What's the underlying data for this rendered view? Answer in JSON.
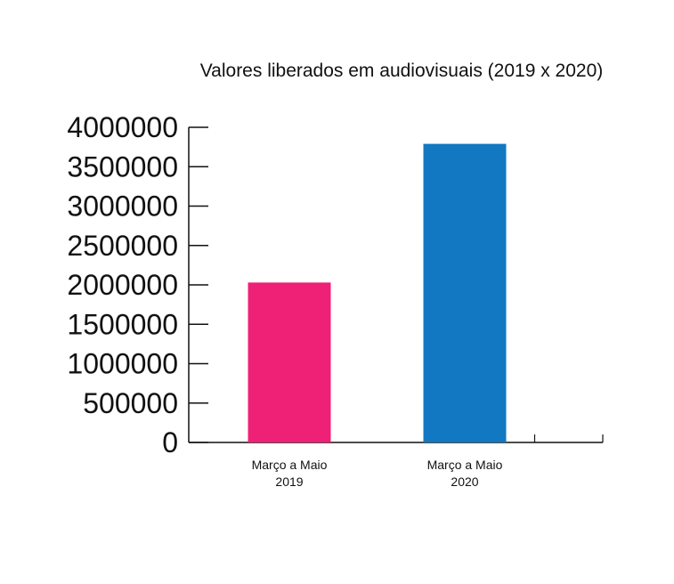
{
  "chart_data": {
    "type": "bar",
    "title": "Valores liberados em audiovisuais (2019 x 2020)",
    "xlabel": "",
    "ylabel": "",
    "categories": [
      [
        "Março a Maio",
        "2019"
      ],
      [
        "Março a Maio",
        "2020"
      ]
    ],
    "values": [
      2030000,
      3790000
    ],
    "bar_colors": [
      "#ee2176",
      "#1278c2"
    ],
    "ylim": [
      0,
      4000000
    ],
    "yticks": [
      0,
      500000,
      1000000,
      1500000,
      2000000,
      2500000,
      3000000,
      3500000,
      4000000
    ],
    "ytick_labels": [
      "0",
      "500000",
      "1000000",
      "1500000",
      "2000000",
      "2500000",
      "3000000",
      "3500000",
      "4000000"
    ],
    "grid": false,
    "legend": "none"
  }
}
